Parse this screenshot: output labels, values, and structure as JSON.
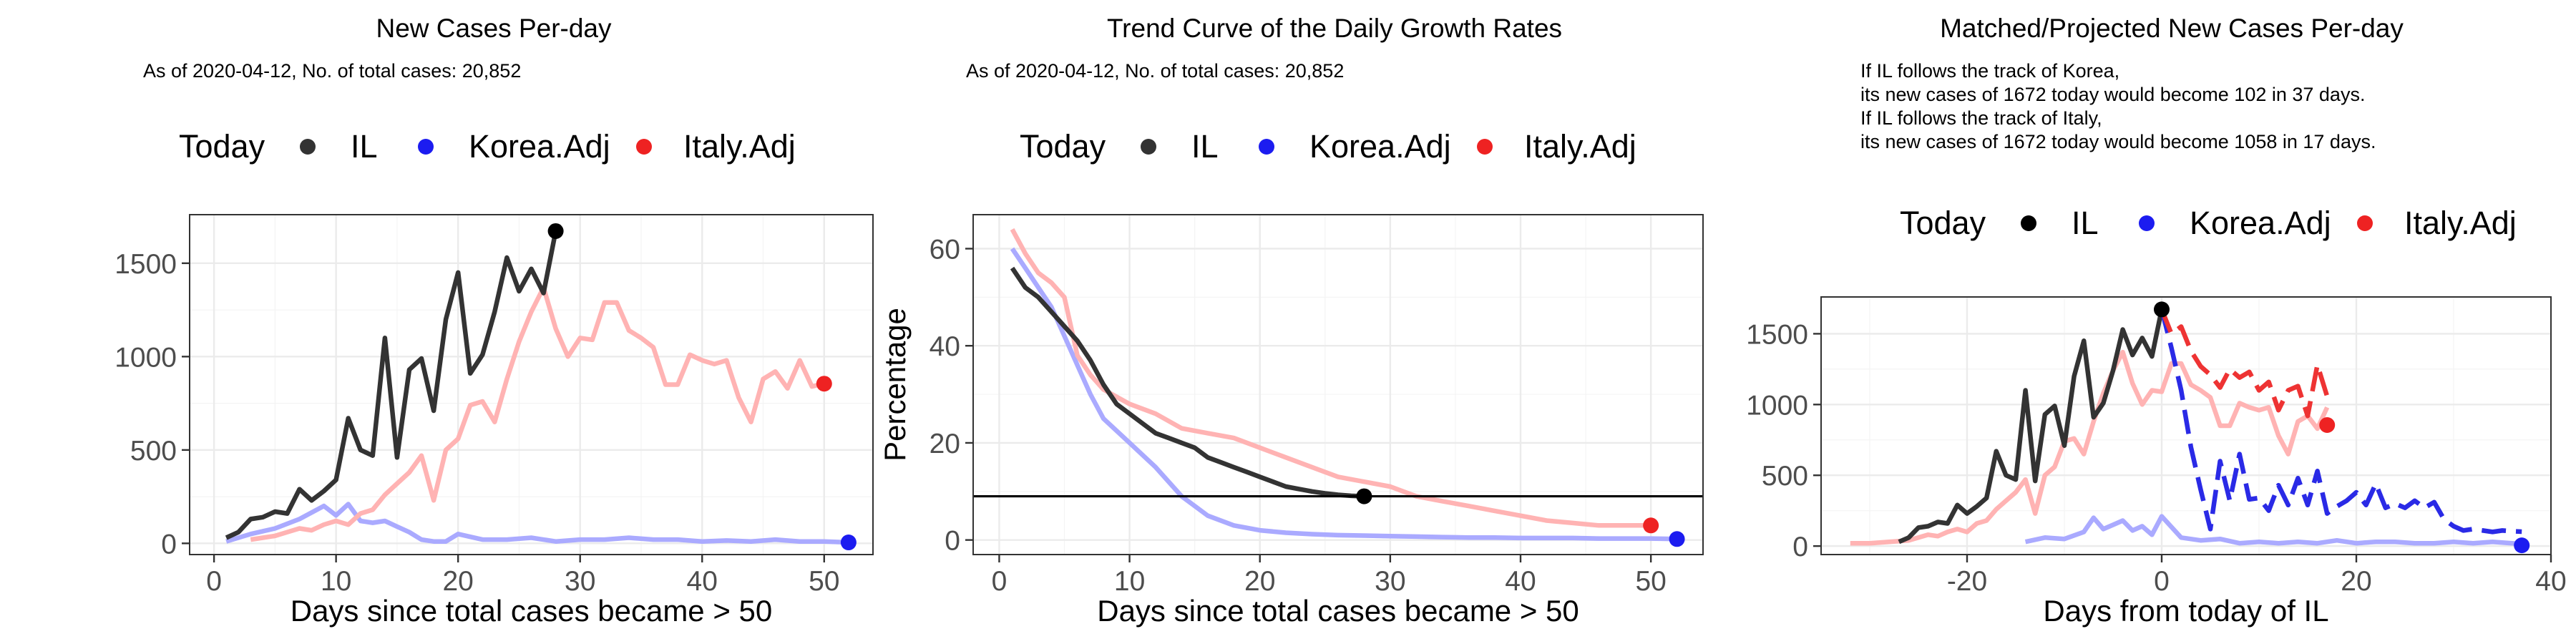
{
  "colors": {
    "IL": "#333333",
    "Korea.Adj": "#aaaaff",
    "Italy.Adj": "#ffb3b3",
    "Korea.Adj_projected": "#2a2ae6",
    "Italy.Adj_projected": "#ee3333",
    "IL_point": "#000000",
    "Korea_point": "#1c1cf0",
    "Italy_point": "#ee2222",
    "hline": "#000000"
  },
  "legend": {
    "title": "Today",
    "labels": [
      "IL",
      "Korea.Adj",
      "Italy.Adj"
    ]
  },
  "chart_data": [
    {
      "type": "line",
      "title": "New Cases Per-day",
      "subtitle": "As of 2020-04-12, No. of total cases: 20,852",
      "xlabel": "Days since total cases became > 50",
      "ylabel": "",
      "xlim": [
        -2,
        54
      ],
      "ylim": [
        -60,
        1760
      ],
      "xticks": [
        0,
        10,
        20,
        30,
        40,
        50
      ],
      "yticks": [
        0,
        500,
        1000,
        1500
      ],
      "grid": true,
      "legend_position": "top",
      "series": [
        {
          "name": "IL",
          "x": [
            1,
            2,
            3,
            4,
            5,
            6,
            7,
            8,
            9,
            10,
            11,
            12,
            13,
            14,
            15,
            16,
            17,
            18,
            19,
            20,
            21,
            22,
            23,
            24,
            25,
            26,
            27,
            28
          ],
          "y": [
            30,
            60,
            130,
            140,
            170,
            160,
            290,
            230,
            280,
            340,
            670,
            500,
            470,
            1100,
            460,
            930,
            990,
            710,
            1200,
            1450,
            910,
            1010,
            1240,
            1530,
            1350,
            1470,
            1340,
            1672
          ]
        },
        {
          "name": "Korea.Adj",
          "x": [
            1,
            3,
            5,
            7,
            9,
            10,
            11,
            12,
            13,
            14,
            15,
            16,
            17,
            18,
            19,
            20,
            22,
            24,
            26,
            28,
            30,
            32,
            34,
            36,
            38,
            40,
            42,
            44,
            46,
            48,
            50,
            52
          ],
          "y": [
            10,
            50,
            80,
            130,
            200,
            150,
            210,
            120,
            110,
            120,
            90,
            60,
            20,
            10,
            10,
            50,
            20,
            20,
            30,
            10,
            20,
            20,
            30,
            20,
            20,
            10,
            15,
            10,
            20,
            10,
            10,
            5
          ]
        },
        {
          "name": "Italy.Adj",
          "x": [
            3,
            4,
            5,
            6,
            7,
            8,
            9,
            10,
            11,
            12,
            13,
            14,
            15,
            16,
            17,
            18,
            19,
            20,
            21,
            22,
            23,
            24,
            25,
            26,
            27,
            28,
            29,
            30,
            31,
            32,
            33,
            34,
            35,
            36,
            37,
            38,
            39,
            40,
            41,
            42,
            43,
            44,
            45,
            46,
            47,
            48,
            49,
            50
          ],
          "y": [
            20,
            30,
            40,
            60,
            80,
            70,
            100,
            120,
            100,
            160,
            180,
            260,
            320,
            380,
            470,
            230,
            500,
            560,
            740,
            760,
            650,
            880,
            1080,
            1240,
            1370,
            1150,
            1000,
            1100,
            1090,
            1290,
            1290,
            1140,
            1100,
            1050,
            850,
            850,
            1010,
            980,
            960,
            980,
            780,
            650,
            880,
            920,
            830,
            980,
            840,
            855
          ]
        }
      ],
      "today_points": [
        {
          "name": "IL",
          "x": 28,
          "y": 1672
        },
        {
          "name": "Korea.Adj",
          "x": 52,
          "y": 5
        },
        {
          "name": "Italy.Adj",
          "x": 50,
          "y": 855
        }
      ]
    },
    {
      "type": "line",
      "title": "Trend Curve of the Daily Growth Rates",
      "subtitle": "As of 2020-04-12, No. of total cases: 20,852",
      "xlabel": "Days since total cases became > 50",
      "ylabel": "Percentage",
      "xlim": [
        -2,
        54
      ],
      "ylim": [
        -3,
        67
      ],
      "xticks": [
        0,
        10,
        20,
        30,
        40,
        50
      ],
      "yticks": [
        0,
        20,
        40,
        60
      ],
      "hline": 9,
      "grid": true,
      "legend_position": "top",
      "series": [
        {
          "name": "IL",
          "x": [
            1,
            2,
            3,
            4,
            5,
            6,
            7,
            8,
            9,
            10,
            11,
            12,
            13,
            14,
            15,
            16,
            17,
            18,
            19,
            20,
            21,
            22,
            23,
            24,
            25,
            26,
            27,
            28
          ],
          "y": [
            56,
            52,
            50,
            47,
            44,
            41,
            37,
            32,
            28,
            26,
            24,
            22,
            21,
            20,
            19,
            17,
            16,
            15,
            14,
            13,
            12,
            11,
            10.5,
            10,
            9.6,
            9.3,
            9.1,
            9
          ]
        },
        {
          "name": "Korea.Adj",
          "x": [
            1,
            2,
            3,
            4,
            5,
            6,
            7,
            8,
            10,
            12,
            14,
            16,
            18,
            20,
            22,
            24,
            26,
            28,
            30,
            32,
            34,
            36,
            38,
            40,
            42,
            44,
            46,
            48,
            50,
            52
          ],
          "y": [
            60,
            56,
            52,
            48,
            42,
            36,
            30,
            25,
            20,
            15,
            9,
            5,
            3,
            2,
            1.5,
            1.2,
            1,
            0.9,
            0.8,
            0.7,
            0.6,
            0.5,
            0.5,
            0.4,
            0.4,
            0.4,
            0.3,
            0.3,
            0.3,
            0.2
          ]
        },
        {
          "name": "Italy.Adj",
          "x": [
            1,
            2,
            3,
            4,
            5,
            6,
            7,
            8,
            10,
            12,
            14,
            16,
            18,
            20,
            22,
            24,
            26,
            28,
            30,
            32,
            34,
            36,
            38,
            40,
            42,
            44,
            46,
            48,
            50
          ],
          "y": [
            64,
            59,
            55,
            53,
            50,
            38,
            34,
            31,
            28,
            26,
            23,
            22,
            21,
            19,
            17,
            15,
            13,
            12,
            11,
            9,
            8,
            7,
            6,
            5,
            4,
            3.5,
            3,
            3,
            3
          ]
        }
      ],
      "today_points": [
        {
          "name": "IL",
          "x": 28,
          "y": 9
        },
        {
          "name": "Korea.Adj",
          "x": 52,
          "y": 0.2
        },
        {
          "name": "Italy.Adj",
          "x": 50,
          "y": 3
        }
      ]
    },
    {
      "type": "line",
      "title": "Matched/Projected New Cases Per-day",
      "subtitle_lines": [
        "If IL follows the track of Korea,",
        "its new cases of 1672 today would become 102 in 37 days.",
        "If IL follows the track of Italy,",
        "its new cases of 1672 today would become 1058 in 17 days."
      ],
      "xlabel": "Days from today of IL",
      "ylabel": "",
      "xlim": [
        -35,
        40
      ],
      "ylim": [
        -60,
        1760
      ],
      "xticks": [
        -20,
        0,
        20,
        40
      ],
      "yticks": [
        0,
        500,
        1000,
        1500
      ],
      "grid": true,
      "legend_position": "top",
      "series": [
        {
          "name": "IL",
          "x": [
            -27,
            -26,
            -25,
            -24,
            -23,
            -22,
            -21,
            -20,
            -19,
            -18,
            -17,
            -16,
            -15,
            -14,
            -13,
            -12,
            -11,
            -10,
            -9,
            -8,
            -7,
            -6,
            -5,
            -4,
            -3,
            -2,
            -1,
            0
          ],
          "y": [
            30,
            60,
            130,
            140,
            170,
            160,
            290,
            230,
            280,
            340,
            670,
            500,
            470,
            1100,
            460,
            930,
            990,
            710,
            1200,
            1450,
            910,
            1010,
            1240,
            1530,
            1350,
            1470,
            1340,
            1672
          ]
        },
        {
          "name": "Korea.Adj",
          "x": [
            -14,
            -12,
            -10,
            -8,
            -7,
            -6,
            -5,
            -4,
            -3,
            -2,
            -1,
            0,
            2,
            4,
            6,
            8,
            10,
            12,
            14,
            16,
            18,
            20,
            22,
            24,
            26,
            28,
            30,
            32,
            34,
            36,
            37
          ],
          "y": [
            30,
            60,
            50,
            100,
            200,
            120,
            150,
            180,
            110,
            140,
            80,
            210,
            60,
            40,
            50,
            20,
            30,
            20,
            30,
            20,
            40,
            20,
            30,
            30,
            20,
            20,
            30,
            20,
            30,
            20,
            15
          ]
        },
        {
          "name": "Italy.Adj",
          "x": [
            -32,
            -30,
            -28,
            -26,
            -25,
            -24,
            -23,
            -22,
            -21,
            -20,
            -19,
            -18,
            -17,
            -16,
            -15,
            -14,
            -13,
            -12,
            -11,
            -10,
            -9,
            -8,
            -7,
            -6,
            -5,
            -4,
            -3,
            -2,
            -1,
            0,
            1,
            2,
            3,
            4,
            5,
            6,
            7,
            8,
            9,
            10,
            11,
            12,
            13,
            14,
            15,
            16,
            17
          ],
          "y": [
            20,
            20,
            30,
            40,
            60,
            80,
            70,
            100,
            120,
            100,
            160,
            180,
            260,
            320,
            380,
            470,
            230,
            500,
            560,
            740,
            760,
            650,
            880,
            1080,
            1240,
            1370,
            1150,
            1000,
            1100,
            1090,
            1290,
            1290,
            1140,
            1100,
            1050,
            850,
            850,
            1010,
            980,
            960,
            980,
            780,
            650,
            880,
            920,
            830,
            980
          ]
        },
        {
          "name": "Korea.Adj",
          "projected": true,
          "x": [
            0,
            1,
            2,
            3,
            4,
            5,
            6,
            7,
            8,
            9,
            10,
            11,
            12,
            13,
            14,
            15,
            16,
            17,
            18,
            19,
            20,
            21,
            22,
            23,
            24,
            25,
            26,
            27,
            28,
            29,
            30,
            31,
            32,
            33,
            34,
            35,
            36,
            37
          ],
          "y": [
            1672,
            1400,
            1100,
            700,
            400,
            120,
            600,
            320,
            650,
            330,
            340,
            250,
            430,
            290,
            480,
            290,
            530,
            230,
            280,
            320,
            380,
            290,
            440,
            270,
            300,
            270,
            320,
            270,
            310,
            190,
            140,
            110,
            120,
            110,
            100,
            110,
            105,
            102
          ]
        },
        {
          "name": "Italy.Adj",
          "projected": true,
          "x": [
            0,
            1,
            2,
            3,
            4,
            5,
            6,
            7,
            8,
            9,
            10,
            11,
            12,
            13,
            14,
            15,
            16,
            17
          ],
          "y": [
            1672,
            1500,
            1550,
            1380,
            1270,
            1210,
            1120,
            1250,
            1190,
            1230,
            1100,
            1160,
            960,
            1100,
            1130,
            920,
            1280,
            1058
          ]
        }
      ],
      "today_points": [
        {
          "name": "IL",
          "x": 0,
          "y": 1672
        },
        {
          "name": "Korea.Adj",
          "x": 37,
          "y": 5
        },
        {
          "name": "Italy.Adj",
          "x": 17,
          "y": 855
        }
      ]
    }
  ]
}
